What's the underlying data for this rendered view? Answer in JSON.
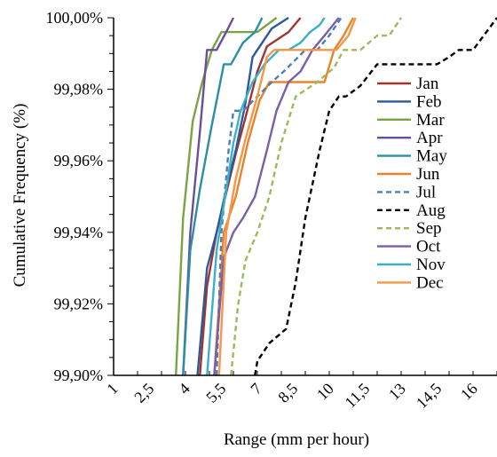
{
  "chart_data": {
    "type": "line",
    "title": "",
    "xlabel": "Range (mm per hour)",
    "ylabel": "Cumulative Frequency (%)",
    "xlim": [
      1,
      17
    ],
    "ylim": [
      99.9,
      100.0
    ],
    "x_ticks": [
      "1",
      "2,5",
      "4",
      "5,5",
      "7",
      "8,5",
      "10",
      "11,5",
      "13",
      "14,5",
      "16"
    ],
    "x_tick_values": [
      1,
      2.5,
      4,
      5.5,
      7,
      8.5,
      10,
      11.5,
      13,
      14.5,
      16
    ],
    "y_ticks": [
      "99,90%",
      "99,92%",
      "99,94%",
      "99,96%",
      "99,98%",
      "100,00%"
    ],
    "y_tick_values": [
      99.9,
      99.92,
      99.94,
      99.96,
      99.98,
      100.0
    ],
    "grid": false,
    "legend_position": "right",
    "series": [
      {
        "name": "Jan",
        "color": "#a0352f",
        "dash": "solid",
        "x": [
          4.6,
          4.9,
          5.3,
          5.7,
          6.1,
          6.5,
          7.0,
          7.4,
          8.3,
          8.8
        ],
        "y": [
          99.9,
          99.925,
          99.94,
          99.951,
          99.962,
          99.972,
          99.985,
          99.992,
          99.996,
          100.0
        ]
      },
      {
        "name": "Feb",
        "color": "#2c5a99",
        "dash": "solid",
        "x": [
          4.5,
          4.9,
          5.3,
          5.7,
          6.1,
          6.5,
          6.8,
          7.2,
          7.6,
          8.3
        ],
        "y": [
          99.9,
          99.93,
          99.94,
          99.952,
          99.963,
          99.976,
          99.989,
          99.993,
          99.997,
          100.0
        ]
      },
      {
        "name": "Mar",
        "color": "#78a543",
        "dash": "solid",
        "x": [
          3.6,
          3.9,
          4.3,
          4.7,
          5.1,
          5.5,
          6.0,
          6.4,
          7.0,
          7.8
        ],
        "y": [
          99.9,
          99.944,
          99.971,
          99.982,
          99.991,
          99.996,
          99.996,
          99.996,
          99.996,
          100.0
        ]
      },
      {
        "name": "Apr",
        "color": "#6c4d9a",
        "dash": "solid",
        "x": [
          3.9,
          4.2,
          4.6,
          4.9,
          5.3,
          5.7,
          6.0
        ],
        "y": [
          99.9,
          99.94,
          99.968,
          99.991,
          99.991,
          99.996,
          100.0
        ]
      },
      {
        "name": "May",
        "color": "#2c8ea6",
        "dash": "solid",
        "x": [
          3.9,
          4.2,
          4.6,
          5.1,
          5.6,
          5.9,
          6.4,
          6.9,
          7.2
        ],
        "y": [
          99.9,
          99.935,
          99.952,
          99.97,
          99.987,
          99.987,
          99.993,
          99.996,
          100.0
        ]
      },
      {
        "name": "Jun",
        "color": "#e6852c",
        "dash": "solid",
        "x": [
          5.2,
          5.6,
          6.1,
          6.6,
          7.1,
          7.5,
          8.0,
          9.0,
          9.8,
          10.2,
          10.6,
          11.0
        ],
        "y": [
          99.9,
          99.94,
          99.95,
          99.965,
          99.977,
          99.982,
          99.982,
          99.982,
          99.982,
          99.991,
          99.995,
          100.0
        ]
      },
      {
        "name": "Jul",
        "color": "#4a7ebb",
        "dash": "dashed",
        "x": [
          5.3,
          5.5,
          5.8,
          6.0,
          6.4,
          7.0,
          7.6,
          8.1,
          9.0,
          9.5,
          10.0,
          10.5
        ],
        "y": [
          99.9,
          99.94,
          99.963,
          99.974,
          99.974,
          99.978,
          99.982,
          99.985,
          99.991,
          99.991,
          99.995,
          100.0
        ]
      },
      {
        "name": "Aug",
        "color": "#000000",
        "dash": "dashed",
        "x": [
          6.9,
          7.0,
          7.5,
          8.2,
          8.6,
          9.0,
          9.6,
          10.0,
          10.4,
          10.7,
          11.3,
          12.0,
          12.8,
          13.6,
          14.5,
          15.0,
          15.4,
          16.0,
          17.0
        ],
        "y": [
          99.9,
          99.904,
          99.909,
          99.913,
          99.926,
          99.944,
          99.963,
          99.974,
          99.978,
          99.978,
          99.981,
          99.987,
          99.987,
          99.987,
          99.987,
          99.989,
          99.991,
          99.991,
          100.0
        ]
      },
      {
        "name": "Sep",
        "color": "#9bbb59",
        "dash": "dashed",
        "x": [
          5.9,
          6.2,
          6.5,
          7.0,
          7.5,
          8.0,
          8.6,
          9.5,
          10.2,
          10.6,
          11.3,
          12.0,
          12.5,
          13.0
        ],
        "y": [
          99.9,
          99.92,
          99.932,
          99.94,
          99.95,
          99.965,
          99.978,
          99.982,
          99.986,
          99.991,
          99.991,
          99.995,
          99.995,
          100.0
        ]
      },
      {
        "name": "Oct",
        "color": "#7b5ea7",
        "dash": "solid",
        "x": [
          5.2,
          5.6,
          6.0,
          6.4,
          6.9,
          7.4,
          7.8,
          8.3,
          8.8,
          9.3,
          9.8,
          10.4
        ],
        "y": [
          99.9,
          99.933,
          99.94,
          99.944,
          99.95,
          99.963,
          99.974,
          99.982,
          99.985,
          99.991,
          99.995,
          100.0
        ]
      },
      {
        "name": "Nov",
        "color": "#3bb0c9",
        "dash": "solid",
        "x": [
          4.9,
          5.3,
          5.7,
          6.0,
          6.3,
          6.8,
          7.3,
          7.9,
          8.3,
          8.8,
          9.2,
          9.6,
          9.8
        ],
        "y": [
          99.9,
          99.935,
          99.952,
          99.965,
          99.974,
          99.982,
          99.987,
          99.991,
          99.991,
          99.993,
          99.996,
          99.998,
          100.0
        ]
      },
      {
        "name": "Dec",
        "color": "#f79646",
        "dash": "solid",
        "x": [
          5.4,
          5.7,
          6.1,
          6.5,
          7.0,
          7.4,
          7.7,
          8.2,
          9.3,
          10.3,
          10.8,
          11.1
        ],
        "y": [
          99.9,
          99.94,
          99.955,
          99.966,
          99.978,
          99.989,
          99.991,
          99.991,
          99.991,
          99.991,
          99.995,
          100.0
        ]
      }
    ]
  }
}
